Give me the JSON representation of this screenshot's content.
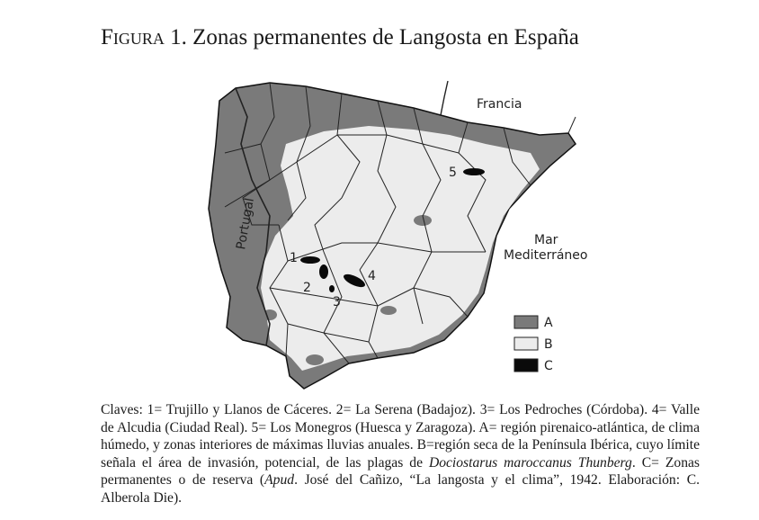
{
  "title": {
    "prefix": "Figura",
    "number": "1.",
    "text": "Zonas permanentes de Langosta en España"
  },
  "map": {
    "labels": {
      "france": "Francia",
      "portugal": "Portugal",
      "sea_line1": "Mar",
      "sea_line2": "Mediterráneo"
    },
    "zones": [
      {
        "key": "1"
      },
      {
        "key": "2"
      },
      {
        "key": "3"
      },
      {
        "key": "4"
      },
      {
        "key": "5"
      }
    ],
    "legend": [
      {
        "key": "A",
        "color": "#7a7a7a"
      },
      {
        "key": "B",
        "color": "#ececec"
      },
      {
        "key": "C",
        "color": "#0a0a0a"
      }
    ]
  },
  "caption": {
    "part1": "Claves: 1= Trujillo y Llanos de Cáceres. 2= La Serena (Badajoz). 3= Los Pedroches (Córdoba). 4= Valle de Alcudia (Ciudad Real). 5= Los Monegros (Huesca y Zaragoza). A= región pirenaico-atlántica, de clima húmedo, y zonas interiores de máximas lluvias anuales. B=región seca de la Península Ibérica, cuyo límite señala el área de invasión, potencial, de las plagas de ",
    "species": "Dociostarus maroccanus Thunberg",
    "part2": ". C= Zonas permanentes o de reserva (",
    "apud": "Apud",
    "part3": ". José del Cañizo, “La langosta y el clima”, 1942. Elaboración: C. Alberola Die)."
  }
}
